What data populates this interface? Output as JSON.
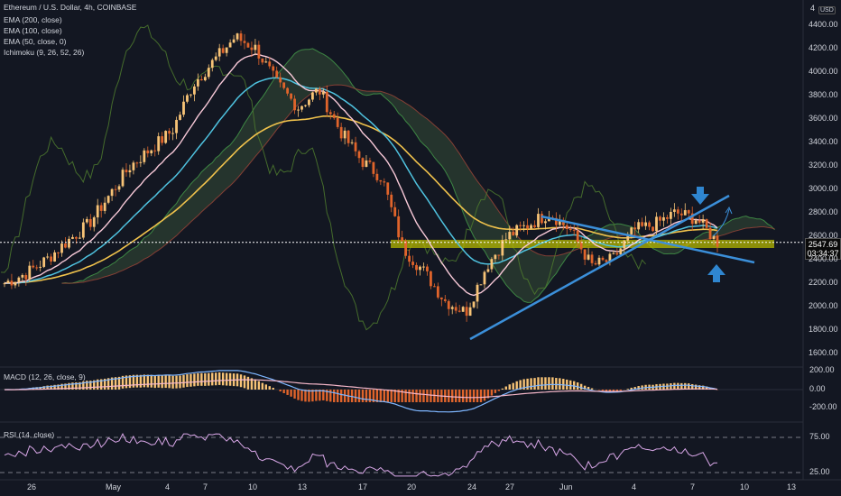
{
  "header": {
    "symbol_line": "Ethereum / U.S. Dollar, 4h, COINBASE",
    "indicators": [
      "EMA (200, close)",
      "EMA (100, close)",
      "EMA (50, close, 0)",
      "Ichimoku (9, 26, 52, 26)"
    ],
    "currency": "USD"
  },
  "price_axis": {
    "ticks": [
      "4400.00",
      "4200.00",
      "4000.00",
      "3800.00",
      "3600.00",
      "3400.00",
      "3200.00",
      "3000.00",
      "2800.00",
      "2600.00",
      "2400.00",
      "2200.00",
      "2000.00",
      "1800.00",
      "1600.00"
    ],
    "top_partial": "4"
  },
  "current_price": {
    "value": "2547.69",
    "countdown": "03:34:37"
  },
  "macd": {
    "label": "MACD (12, 26, close, 9)",
    "ticks": [
      "200.00",
      "0.00",
      "-200.00"
    ]
  },
  "rsi": {
    "label": "RSI (14, close)",
    "ticks": [
      "75.00",
      "25.00"
    ]
  },
  "time_axis": {
    "labels": [
      "26",
      "May",
      "4",
      "7",
      "10",
      "13",
      "17",
      "20",
      "24",
      "27",
      "Jun",
      "4",
      "7",
      "10",
      "13"
    ]
  },
  "colors": {
    "background": "#131722",
    "candle_up": "#f7c376",
    "candle_down": "#e0642b",
    "ema200": "#f0c24c",
    "ema100": "#4fc3e0",
    "ema50": "#f8c9d8",
    "trendline": "#3b8fd9",
    "support_zone": "#b5b800",
    "arrow": "#2f86d0"
  },
  "chart_data": {
    "type": "candlestick",
    "title": "Ethereum / U.S. Dollar, 4h, COINBASE",
    "ylim": [
      1500,
      4500
    ],
    "x": [
      "26",
      "May",
      "4",
      "7",
      "10",
      "13",
      "17",
      "20",
      "24",
      "27",
      "Jun",
      "4",
      "7",
      "10",
      "13"
    ],
    "close_path": [
      2200,
      2280,
      2400,
      2560,
      2700,
      2950,
      3200,
      3350,
      3500,
      3900,
      4100,
      4300,
      4200,
      3900,
      3700,
      3850,
      3500,
      3250,
      3100,
      2500,
      2300,
      2050,
      1950,
      2350,
      2600,
      2700,
      2800,
      2650,
      2350,
      2400,
      2650,
      2700,
      2800,
      2750,
      2550
    ],
    "support_zone": [
      2500,
      2570
    ],
    "macd_ticks": [
      200,
      0,
      -200
    ],
    "rsi_levels": [
      75,
      25
    ]
  }
}
